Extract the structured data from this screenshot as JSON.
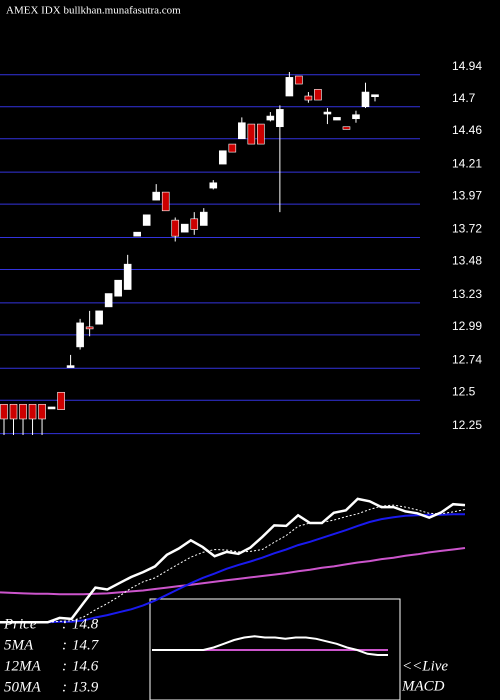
{
  "chart_data": {
    "type": "candlestick",
    "title": "AMEX  IDX  bullkhan.munafasutra.com",
    "up_color": "#ffffff",
    "down_color": "#cc0000",
    "grid": true,
    "grid_color": "#3333dd",
    "ylim": [
      12.0,
      15.2
    ],
    "yticks": [
      14.94,
      14.7,
      14.46,
      14.21,
      13.97,
      13.72,
      13.48,
      13.23,
      12.99,
      12.74,
      12.5,
      12.25
    ],
    "ohlc": [
      [
        12.47,
        12.47,
        12.24,
        12.36
      ],
      [
        12.47,
        12.47,
        12.24,
        12.36
      ],
      [
        12.47,
        12.47,
        12.24,
        12.36
      ],
      [
        12.47,
        12.47,
        12.24,
        12.36
      ],
      [
        12.47,
        12.47,
        12.24,
        12.36
      ],
      [
        12.44,
        12.45,
        12.44,
        12.45
      ],
      [
        12.56,
        12.56,
        12.43,
        12.43
      ],
      [
        12.75,
        12.84,
        12.75,
        12.76
      ],
      [
        12.9,
        13.11,
        12.88,
        13.08
      ],
      [
        13.05,
        13.17,
        12.98,
        13.04
      ],
      [
        13.07,
        13.17,
        13.07,
        13.17
      ],
      [
        13.2,
        13.3,
        13.2,
        13.3
      ],
      [
        13.28,
        13.4,
        13.28,
        13.4
      ],
      [
        13.33,
        13.59,
        13.33,
        13.52
      ],
      [
        13.73,
        13.76,
        13.73,
        13.76
      ],
      [
        13.81,
        13.89,
        13.81,
        13.89
      ],
      [
        14.0,
        14.12,
        14.0,
        14.06
      ],
      [
        14.06,
        14.06,
        13.92,
        13.92
      ],
      [
        13.85,
        13.87,
        13.69,
        13.73
      ],
      [
        13.76,
        13.82,
        13.76,
        13.82
      ],
      [
        13.86,
        13.91,
        13.74,
        13.78
      ],
      [
        13.81,
        13.94,
        13.81,
        13.91
      ],
      [
        14.09,
        14.15,
        14.08,
        14.13
      ],
      [
        14.27,
        14.37,
        14.27,
        14.37
      ],
      [
        14.42,
        14.42,
        14.36,
        14.36
      ],
      [
        14.46,
        14.62,
        14.46,
        14.58
      ],
      [
        14.57,
        14.57,
        14.42,
        14.42
      ],
      [
        14.57,
        14.57,
        14.42,
        14.42
      ],
      [
        14.6,
        14.66,
        14.59,
        14.63
      ],
      [
        14.55,
        14.71,
        13.91,
        14.68
      ],
      [
        14.78,
        14.96,
        14.78,
        14.92
      ],
      [
        14.93,
        14.93,
        14.87,
        14.87
      ],
      [
        14.78,
        14.81,
        14.73,
        14.75
      ],
      [
        14.83,
        14.83,
        14.75,
        14.75
      ],
      [
        14.65,
        14.69,
        14.57,
        14.66
      ],
      [
        14.6,
        14.62,
        14.6,
        14.62
      ],
      [
        14.55,
        14.55,
        14.53,
        14.53
      ],
      [
        14.61,
        14.67,
        14.58,
        14.64
      ],
      [
        14.7,
        14.88,
        14.69,
        14.81
      ],
      [
        14.78,
        14.79,
        14.74,
        14.79
      ]
    ],
    "ma_panel": {
      "ylim": [
        12.2,
        15.0
      ],
      "price": {
        "name": "Price",
        "latest": 14.8,
        "color": "#ffffff"
      },
      "lines": [
        {
          "name": "5MA",
          "latest": 14.7,
          "color": "#ffffff",
          "dashed": true,
          "values": [
            12.36,
            12.36,
            12.36,
            12.36,
            12.36,
            12.38,
            12.39,
            12.47,
            12.62,
            12.75,
            12.9,
            13.07,
            13.2,
            13.28,
            13.43,
            13.57,
            13.71,
            13.81,
            13.87,
            13.86,
            13.82,
            13.83,
            13.87,
            14.02,
            14.16,
            14.35,
            14.42,
            14.43,
            14.48,
            14.55,
            14.61,
            14.7,
            14.77,
            14.79,
            14.75,
            14.69,
            14.62,
            14.61,
            14.65,
            14.7
          ]
        },
        {
          "name": "12MA",
          "latest": 14.6,
          "color": "#1a1aee",
          "dashed": false,
          "values": [
            12.36,
            12.36,
            12.36,
            12.36,
            12.36,
            12.37,
            12.37,
            12.4,
            12.46,
            12.51,
            12.57,
            12.63,
            12.71,
            12.81,
            12.93,
            13.05,
            13.17,
            13.28,
            13.37,
            13.47,
            13.55,
            13.62,
            13.7,
            13.79,
            13.87,
            13.96,
            14.03,
            14.11,
            14.19,
            14.27,
            14.36,
            14.44,
            14.5,
            14.54,
            14.57,
            14.58,
            14.59,
            14.59,
            14.6,
            14.6
          ]
        },
        {
          "name": "50MA",
          "latest": 13.9,
          "color": "#cc55cc",
          "dashed": false,
          "values": [
            12.98,
            12.97,
            12.96,
            12.95,
            12.95,
            12.94,
            12.94,
            12.94,
            12.95,
            12.96,
            12.98,
            13.0,
            13.02,
            13.05,
            13.08,
            13.11,
            13.14,
            13.17,
            13.2,
            13.23,
            13.26,
            13.29,
            13.32,
            13.35,
            13.38,
            13.42,
            13.45,
            13.49,
            13.52,
            13.56,
            13.6,
            13.63,
            13.67,
            13.7,
            13.74,
            13.77,
            13.81,
            13.84,
            13.87,
            13.9
          ]
        }
      ]
    },
    "macd_panel": {
      "label_top": "<<Live",
      "label_bottom": "MACD",
      "ylim": [
        -40,
        40
      ],
      "macd": {
        "color": "#ffffff",
        "values": [
          0,
          0,
          0,
          0,
          0,
          0,
          2,
          5,
          8,
          10,
          11,
          10,
          10,
          9,
          10,
          10,
          9,
          7,
          5,
          2,
          0,
          -3,
          -4,
          -4
        ]
      },
      "signal": {
        "color": "#cc55cc",
        "values": [
          0,
          0,
          0,
          0,
          0,
          0,
          0,
          0,
          0,
          0,
          0,
          0,
          0,
          0,
          0,
          0,
          0,
          0,
          0,
          0,
          0,
          0,
          0,
          0
        ]
      }
    }
  }
}
